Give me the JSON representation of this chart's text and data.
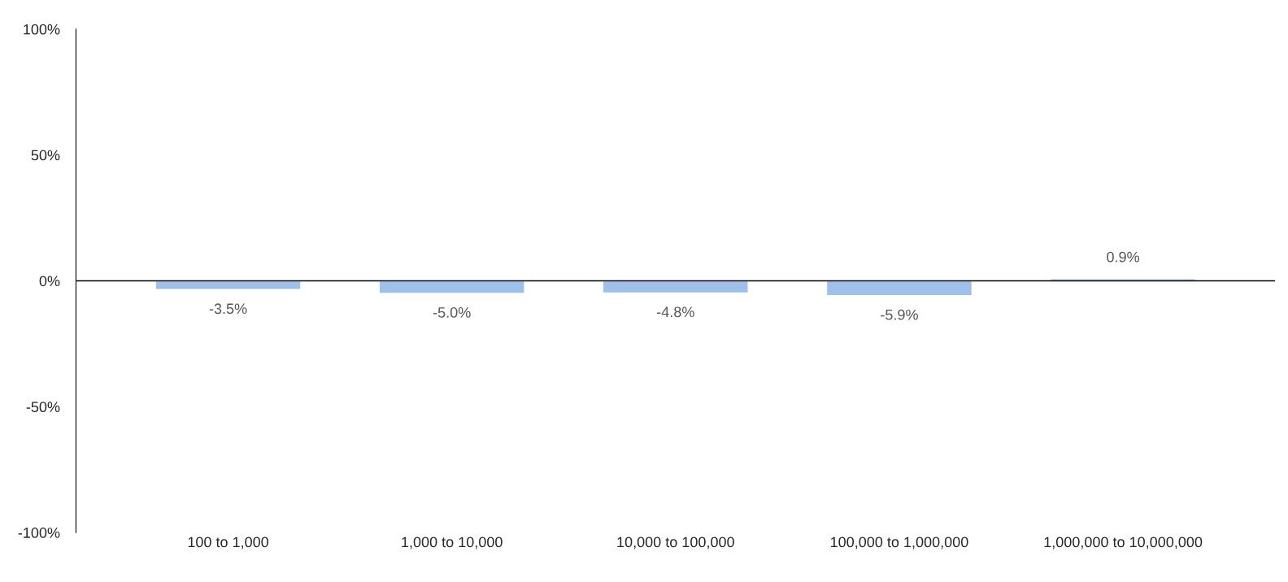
{
  "chart_data": {
    "type": "bar",
    "categories": [
      "100 to 1,000",
      "1,000 to 10,000",
      "10,000 to 100,000",
      "100,000 to 1,000,000",
      "1,000,000 to 10,000,000"
    ],
    "values": [
      -3.5,
      -5.0,
      -4.8,
      -5.9,
      0.9
    ],
    "value_labels": [
      "-3.5%",
      "-5.0%",
      "-4.8%",
      "-5.9%",
      "0.9%"
    ],
    "color": "#9fc0ea",
    "ylim": [
      -100,
      100
    ],
    "yticks": [
      {
        "value": -100,
        "label": "-100%"
      },
      {
        "value": -50,
        "label": "-50%"
      },
      {
        "value": 0,
        "label": "0%"
      },
      {
        "value": 50,
        "label": "50%"
      },
      {
        "value": 100,
        "label": "100%"
      }
    ],
    "legend": false
  }
}
